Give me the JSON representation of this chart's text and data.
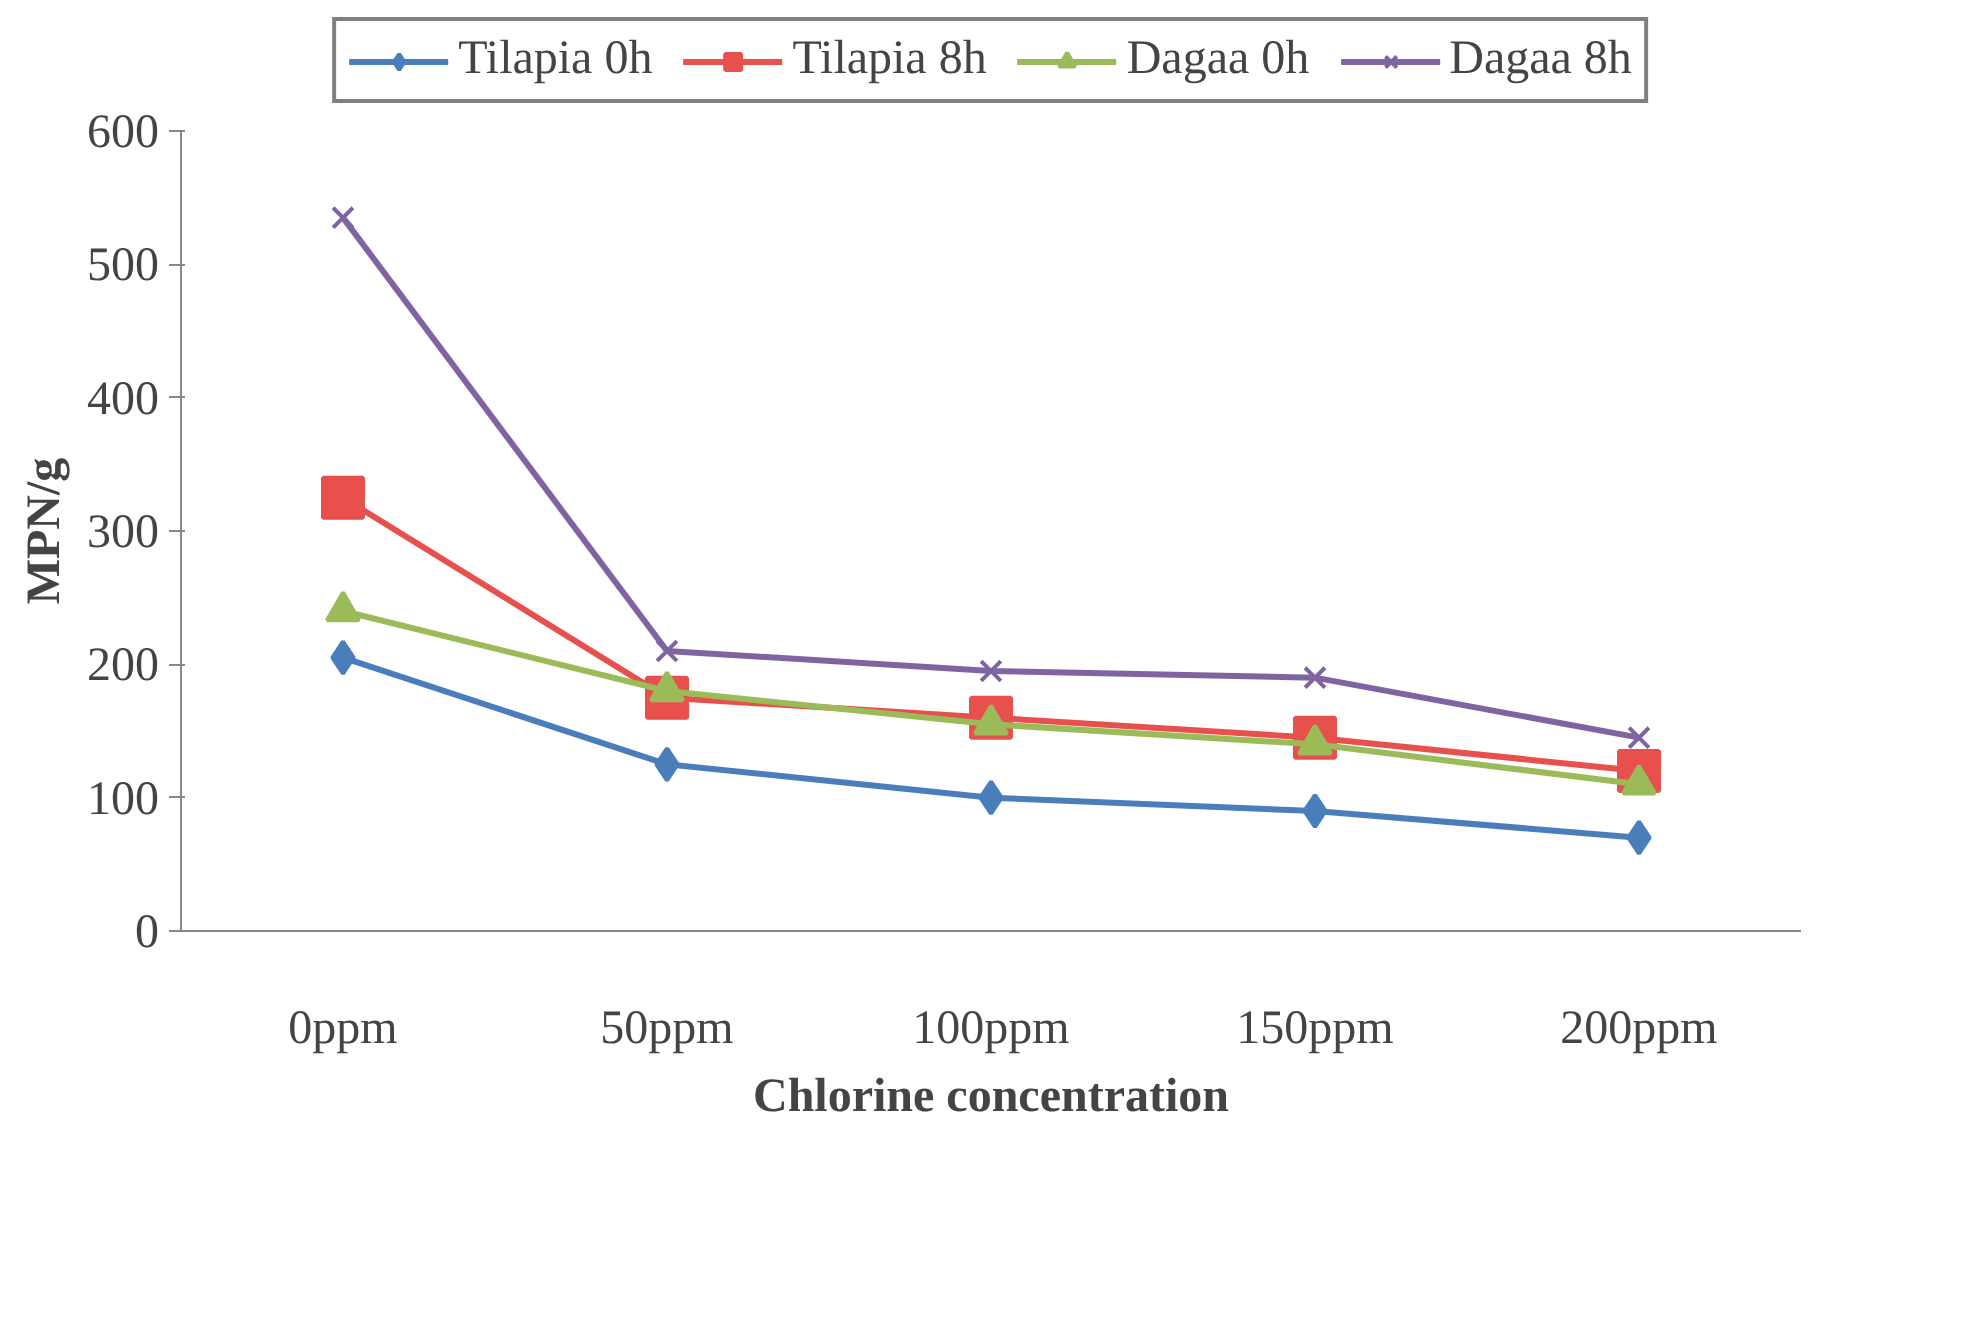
{
  "chart_data": {
    "type": "line",
    "xlabel": "Chlorine concentration",
    "ylabel": "MPN/g",
    "categories": [
      "0ppm",
      "50ppm",
      "100ppm",
      "150ppm",
      "200ppm"
    ],
    "ylim": [
      0,
      600
    ],
    "yticks": [
      0,
      100,
      200,
      300,
      400,
      500,
      600
    ],
    "grid": false,
    "legend": "top",
    "series": [
      {
        "name": "Tilapia 0h",
        "color": "#4a7ebb",
        "marker": "diamond",
        "values": [
          205,
          125,
          100,
          90,
          70
        ]
      },
      {
        "name": "Tilapia 8h",
        "color": "#e8504e",
        "marker": "square",
        "values": [
          325,
          175,
          160,
          145,
          120
        ]
      },
      {
        "name": "Dagaa 0h",
        "color": "#9bbb59",
        "marker": "triangle",
        "values": [
          240,
          180,
          155,
          140,
          110
        ]
      },
      {
        "name": "Dagaa 8h",
        "color": "#8064a2",
        "marker": "x",
        "values": [
          535,
          210,
          195,
          190,
          145
        ]
      }
    ]
  }
}
